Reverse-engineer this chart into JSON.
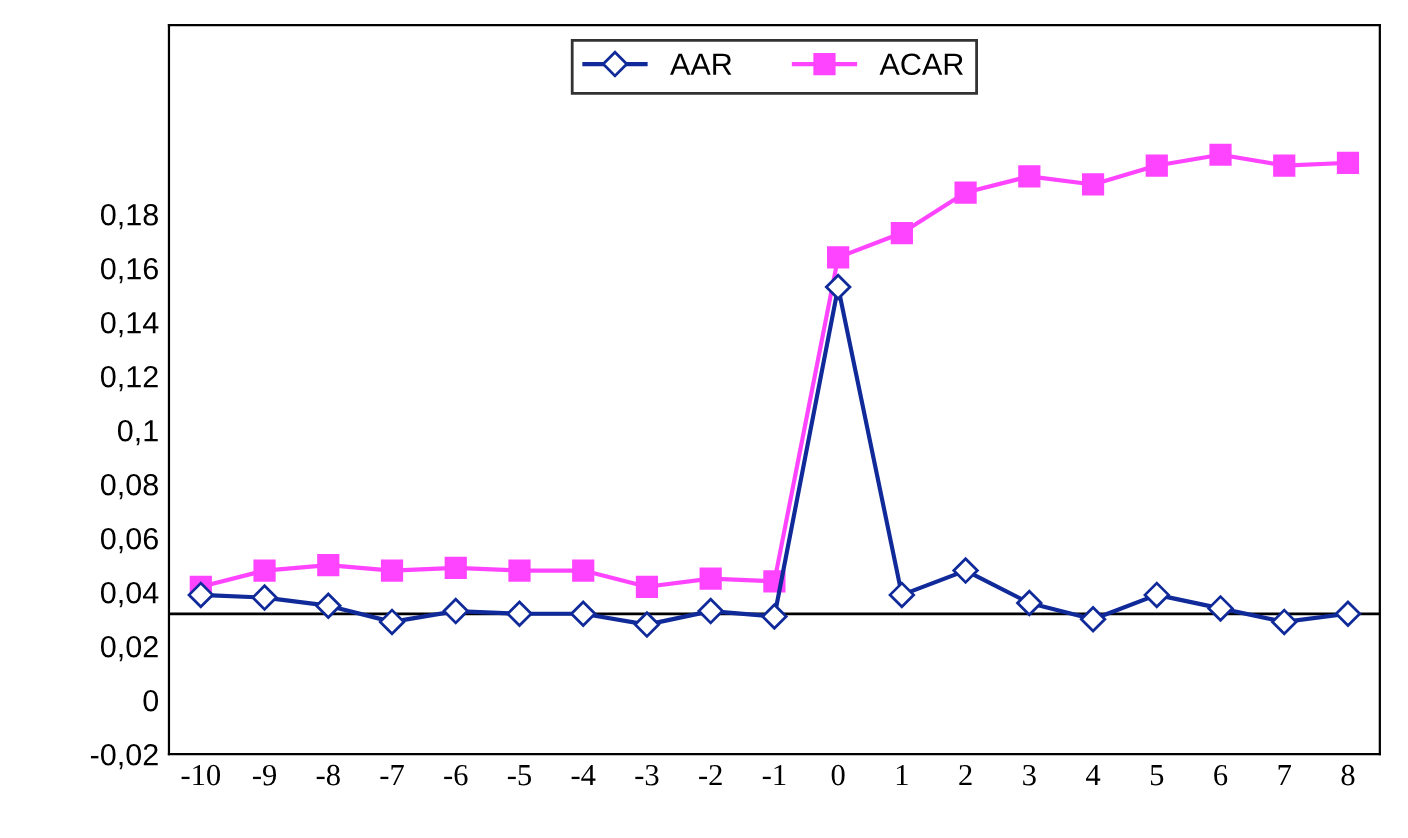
{
  "chart_data": {
    "type": "line",
    "categories": [
      "-10",
      "-9",
      "-8",
      "-7",
      "-6",
      "-5",
      "-4",
      "-3",
      "-2",
      "-1",
      "0",
      "1",
      "2",
      "3",
      "4",
      "5",
      "6",
      "7",
      "8"
    ],
    "series": [
      {
        "name": "AAR",
        "color": "#102a9a",
        "marker": "diamond",
        "values": [
          0.039,
          0.038,
          0.035,
          0.029,
          0.033,
          0.032,
          0.032,
          0.028,
          0.033,
          0.031,
          0.153,
          0.039,
          0.048,
          0.036,
          0.03,
          0.039,
          0.034,
          0.029,
          0.032
        ]
      },
      {
        "name": "ACAR",
        "color": "#ff44ff",
        "marker": "square",
        "values": [
          0.042,
          0.048,
          0.05,
          0.048,
          0.049,
          0.048,
          0.048,
          0.042,
          0.045,
          0.044,
          0.164,
          0.173,
          0.188,
          0.194,
          0.191,
          0.198,
          0.202,
          0.198,
          0.199
        ]
      }
    ],
    "ylim": [
      -0.02,
      0.25
    ],
    "yticks": [
      {
        "value": -0.02,
        "label": "-0,02"
      },
      0,
      {
        "value": 0.02,
        "label": "0,02"
      },
      {
        "value": 0.04,
        "label": "0,04"
      },
      {
        "value": 0.06,
        "label": "0,06"
      },
      {
        "value": 0.08,
        "label": "0,08"
      },
      {
        "value": 0.1,
        "label": "0,1"
      },
      {
        "value": 0.12,
        "label": "0,12"
      },
      {
        "value": 0.14,
        "label": "0,14"
      },
      {
        "value": 0.16,
        "label": "0,16"
      },
      {
        "value": 0.18,
        "label": "0,18"
      }
    ],
    "ref_lines": [
      {
        "axis": "y",
        "value": 0.032,
        "color": "#000000"
      }
    ],
    "grid": false,
    "legend": "top"
  }
}
